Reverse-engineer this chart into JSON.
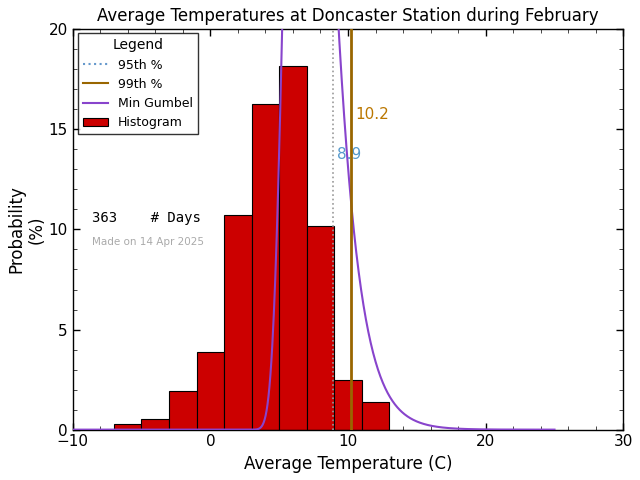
{
  "title": "Average Temperatures at Doncaster Station during February",
  "xlabel": "Average Temperature (C)",
  "ylabel": "Probability\n(%)",
  "xlim": [
    -10,
    30
  ],
  "ylim": [
    0,
    20
  ],
  "yticks": [
    0,
    5,
    10,
    15,
    20
  ],
  "xticks": [
    -10,
    0,
    10,
    20,
    30
  ],
  "bin_edges": [
    -7,
    -5,
    -3,
    -1,
    1,
    3,
    5,
    7,
    9,
    11,
    13
  ],
  "bin_heights": [
    0.27,
    0.55,
    1.93,
    3.86,
    10.74,
    16.25,
    18.18,
    10.19,
    2.48,
    1.38,
    0.0
  ],
  "bar_color": "#cc0000",
  "bar_edgecolor": "#000000",
  "gumbel_mu": 6.8,
  "gumbel_beta": 1.4,
  "percentile_95": 8.9,
  "percentile_99": 10.2,
  "n_days": 363,
  "made_on": "Made on 14 Apr 2025",
  "legend_title": "Legend",
  "bg_color": "#ffffff",
  "title_color": "#000000",
  "label_color_95": "#5599cc",
  "label_color_99": "#bb7700",
  "line_color_95_dotted": "#999999",
  "line_color_99": "#996600",
  "gumbel_color": "#8844cc",
  "watermark_color": "#aaaaaa"
}
